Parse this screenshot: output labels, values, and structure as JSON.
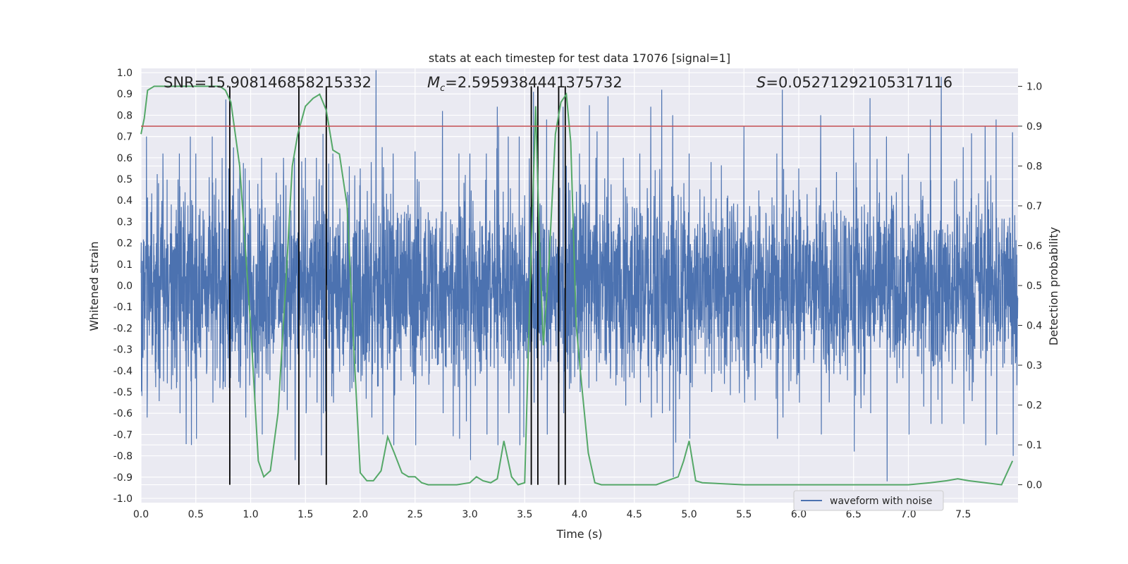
{
  "chart_data": {
    "type": "line",
    "title": "stats at each timestep for test data 17076 [signal=1]",
    "xlabel": "Time (s)",
    "ylabel_left": "Whitened strain",
    "ylabel_right": "Detection probability",
    "xlim": [
      0.0,
      8.0
    ],
    "ylim_left": [
      -1.02,
      1.02
    ],
    "ylim_right": [
      -0.045,
      1.045
    ],
    "x_ticks": [
      "0.0",
      "0.5",
      "1.0",
      "1.5",
      "2.0",
      "2.5",
      "3.0",
      "3.5",
      "4.0",
      "4.5",
      "5.0",
      "5.5",
      "6.0",
      "6.5",
      "7.0",
      "7.5"
    ],
    "y_left_ticks": [
      "-1.0",
      "-0.9",
      "-0.8",
      "-0.7",
      "-0.6",
      "-0.5",
      "-0.4",
      "-0.3",
      "-0.2",
      "-0.1",
      "0.0",
      "0.1",
      "0.2",
      "0.3",
      "0.4",
      "0.5",
      "0.6",
      "0.7",
      "0.8",
      "0.9",
      "1.0"
    ],
    "y_right_ticks": [
      "0.0",
      "0.1",
      "0.2",
      "0.3",
      "0.4",
      "0.5",
      "0.6",
      "0.7",
      "0.8",
      "0.9",
      "1.0"
    ],
    "grid": true,
    "legend_position": "lower-right",
    "annotations": {
      "snr": "SNR=15.908146858215332",
      "mc_symbol": "M",
      "mc_sub": "c",
      "mc_value": "=2.5959384441375732",
      "s_symbol": "S",
      "s_value": "=0.05271292105317116"
    },
    "threshold_right": 0.9,
    "detection_markers_x": [
      0.81,
      1.44,
      1.69,
      3.56,
      3.62,
      3.81,
      3.87
    ],
    "series": [
      {
        "name": "waveform with noise",
        "axis": "left",
        "color": "#4c72b0",
        "envelope_peaks": [
          [
            0.05,
            0.7,
            -0.62
          ],
          [
            0.2,
            0.62,
            -0.45
          ],
          [
            0.35,
            0.62,
            -0.6
          ],
          [
            0.45,
            0.7,
            -0.45
          ],
          [
            0.5,
            0.62,
            -0.72
          ],
          [
            0.65,
            0.7,
            -0.55
          ],
          [
            0.8,
            0.55,
            -0.48
          ],
          [
            0.9,
            0.58,
            -0.45
          ],
          [
            0.95,
            0.55,
            -0.62
          ],
          [
            1.1,
            0.6,
            -0.7
          ],
          [
            1.3,
            0.6,
            -0.5
          ],
          [
            1.4,
            0.6,
            -0.82
          ],
          [
            1.5,
            0.6,
            -0.6
          ],
          [
            1.6,
            0.6,
            -0.55
          ],
          [
            1.75,
            0.62,
            -0.55
          ],
          [
            1.9,
            0.56,
            -0.5
          ],
          [
            2.0,
            0.55,
            -0.45
          ],
          [
            2.1,
            0.58,
            -0.62
          ],
          [
            2.2,
            0.65,
            -0.7
          ],
          [
            2.3,
            0.62,
            -0.75
          ],
          [
            2.5,
            0.63,
            -0.75
          ],
          [
            2.75,
            0.82,
            -0.6
          ],
          [
            2.9,
            0.62,
            -0.72
          ],
          [
            3.0,
            0.62,
            -0.82
          ],
          [
            3.15,
            0.62,
            -0.7
          ],
          [
            3.25,
            0.84,
            -0.75
          ],
          [
            3.35,
            0.7,
            -0.6
          ],
          [
            3.45,
            0.7,
            -0.75
          ],
          [
            3.58,
            0.91,
            -0.55
          ],
          [
            3.7,
            0.78,
            -0.7
          ],
          [
            3.85,
            0.84,
            -0.6
          ],
          [
            4.0,
            0.62,
            -0.5
          ],
          [
            4.15,
            0.6,
            -0.45
          ],
          [
            4.4,
            0.6,
            -0.45
          ],
          [
            4.55,
            0.62,
            -0.55
          ],
          [
            4.65,
            0.84,
            -0.62
          ],
          [
            4.75,
            0.92,
            -0.6
          ],
          [
            4.85,
            0.8,
            -0.9
          ],
          [
            5.0,
            0.62,
            -0.72
          ],
          [
            5.2,
            0.58,
            -0.5
          ],
          [
            5.5,
            0.75,
            -0.55
          ],
          [
            5.8,
            0.62,
            -0.72
          ],
          [
            5.85,
            0.92,
            -0.62
          ],
          [
            6.0,
            0.55,
            -0.55
          ],
          [
            6.2,
            0.8,
            -0.7
          ],
          [
            6.5,
            0.74,
            -0.78
          ],
          [
            6.65,
            0.88,
            -0.6
          ],
          [
            6.8,
            0.7,
            -0.92
          ],
          [
            7.0,
            0.62,
            -0.7
          ],
          [
            7.2,
            0.78,
            -0.65
          ],
          [
            7.3,
            0.98,
            -0.65
          ],
          [
            7.5,
            0.65,
            -0.65
          ],
          [
            7.7,
            0.75,
            -0.75
          ],
          [
            7.8,
            0.78,
            -0.7
          ],
          [
            7.95,
            0.72,
            -0.8
          ]
        ]
      },
      {
        "name": "",
        "axis": "right",
        "color": "#55a868",
        "x": [
          0.0,
          0.03,
          0.06,
          0.12,
          0.25,
          0.5,
          0.72,
          0.77,
          0.82,
          0.9,
          1.0,
          1.07,
          1.12,
          1.18,
          1.25,
          1.32,
          1.38,
          1.43,
          1.5,
          1.57,
          1.63,
          1.69,
          1.75,
          1.81,
          1.88,
          1.94,
          2.0,
          2.06,
          2.12,
          2.19,
          2.25,
          2.31,
          2.38,
          2.44,
          2.5,
          2.56,
          2.62,
          2.75,
          2.88,
          3.0,
          3.06,
          3.12,
          3.19,
          3.25,
          3.31,
          3.38,
          3.44,
          3.5,
          3.55,
          3.6,
          3.63,
          3.67,
          3.72,
          3.78,
          3.83,
          3.88,
          3.92,
          3.97,
          4.02,
          4.08,
          4.14,
          4.2,
          4.3,
          4.5,
          4.7,
          4.8,
          4.9,
          4.95,
          5.0,
          5.06,
          5.12,
          5.5,
          6.0,
          6.5,
          7.0,
          7.2,
          7.35,
          7.45,
          7.55,
          7.7,
          7.85,
          7.95
        ],
        "y": [
          0.88,
          0.92,
          0.99,
          1.0,
          1.0,
          1.0,
          1.0,
          0.99,
          0.96,
          0.8,
          0.4,
          0.06,
          0.02,
          0.035,
          0.18,
          0.5,
          0.8,
          0.88,
          0.95,
          0.97,
          0.98,
          0.94,
          0.84,
          0.83,
          0.7,
          0.35,
          0.03,
          0.01,
          0.01,
          0.035,
          0.12,
          0.08,
          0.03,
          0.02,
          0.02,
          0.005,
          0.0,
          0.0,
          0.0,
          0.005,
          0.02,
          0.01,
          0.005,
          0.015,
          0.11,
          0.02,
          0.0,
          0.005,
          0.5,
          0.95,
          0.65,
          0.35,
          0.55,
          0.88,
          0.96,
          0.98,
          0.86,
          0.4,
          0.25,
          0.08,
          0.005,
          0.0,
          0.0,
          0.0,
          0.0,
          0.01,
          0.02,
          0.06,
          0.11,
          0.01,
          0.005,
          0.0,
          0.0,
          0.0,
          0.0,
          0.005,
          0.01,
          0.015,
          0.01,
          0.005,
          0.0,
          0.06
        ]
      },
      {
        "name": "",
        "axis": "right",
        "color": "#c44e52",
        "threshold_line": 0.9
      }
    ]
  },
  "legend": {
    "label": "waveform with noise"
  }
}
